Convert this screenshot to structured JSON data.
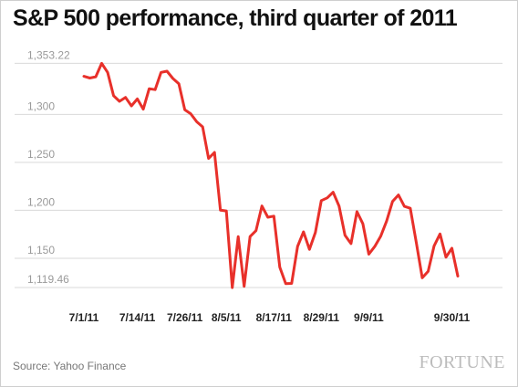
{
  "title": "S&P 500 performance, third quarter of 2011",
  "source": "Source: Yahoo Finance",
  "brand": "FORTUNE",
  "colors": {
    "line": "#e8302a",
    "grid": "#d9d9d9",
    "ytick_text": "#9a9a9a"
  },
  "chart_data": {
    "type": "line",
    "title": "S&P 500 performance, third quarter of 2011",
    "xlabel": "",
    "ylabel": "",
    "grid": true,
    "legend": "none",
    "ylim": [
      1110,
      1365
    ],
    "y_ticks": [
      {
        "value": 1353.22,
        "label": "1,353.22"
      },
      {
        "value": 1300,
        "label": "1,300"
      },
      {
        "value": 1250,
        "label": "1,250"
      },
      {
        "value": 1200,
        "label": "1,200"
      },
      {
        "value": 1150,
        "label": "1,150"
      },
      {
        "value": 1119.46,
        "label": "1,119.46"
      }
    ],
    "x_ticks": [
      {
        "index": 0,
        "label": "7/1/11"
      },
      {
        "index": 9,
        "label": "7/14/11"
      },
      {
        "index": 17,
        "label": "7/26/11"
      },
      {
        "index": 24,
        "label": "8/5/11"
      },
      {
        "index": 32,
        "label": "8/17/11"
      },
      {
        "index": 40,
        "label": "8/29/11"
      },
      {
        "index": 48,
        "label": "9/9/11"
      },
      {
        "index": 62,
        "label": "9/30/11"
      }
    ],
    "series": [
      {
        "values": [
          1339.67,
          1337.88,
          1339.22,
          1353.22,
          1343.8,
          1319.49,
          1313.64,
          1317.72,
          1308.87,
          1316.14,
          1305.44,
          1326.73,
          1325.84,
          1343.8,
          1345.02,
          1337.43,
          1331.94,
          1304.89,
          1300.67,
          1292.28,
          1286.94,
          1254.05,
          1260.34,
          1200.07,
          1199.38,
          1119.46,
          1172.53,
          1120.76,
          1172.64,
          1178.81,
          1204.49,
          1192.76,
          1193.89,
          1140.65,
          1123.53,
          1123.82,
          1162.35,
          1177.6,
          1159.27,
          1176.8,
          1210.08,
          1212.92,
          1218.89,
          1204.42,
          1173.97,
          1165.24,
          1198.62,
          1185.9,
          1154.23,
          1162.27,
          1172.87,
          1188.68,
          1209.11,
          1216.01,
          1204.09,
          1202.09,
          1166.76,
          1129.56,
          1136.43,
          1162.95,
          1175.38,
          1151.06,
          1160.4,
          1131.42
        ]
      }
    ]
  }
}
